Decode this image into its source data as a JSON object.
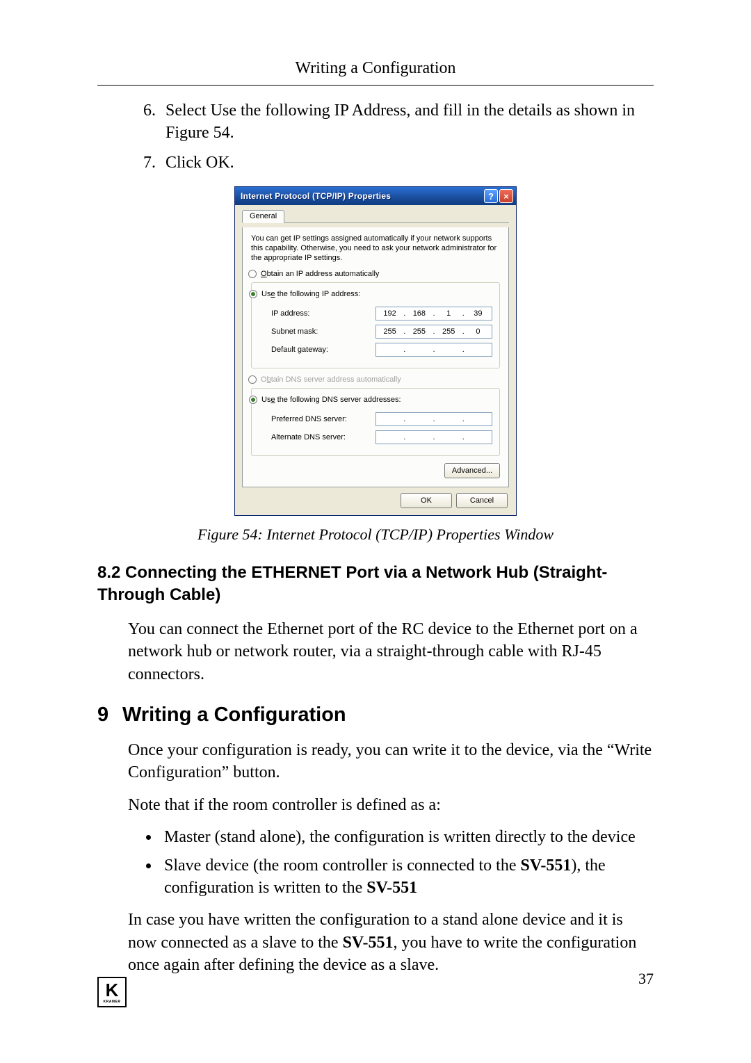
{
  "header": {
    "running": "Writing a Configuration"
  },
  "steps": [
    {
      "n": 6,
      "text": "Select Use the following IP Address, and fill in the details as shown in Figure 54."
    },
    {
      "n": 7,
      "text": "Click OK."
    }
  ],
  "figure": {
    "caption": "Figure 54: Internet Protocol (TCP/IP) Properties Window"
  },
  "dialog": {
    "title": "Internet Protocol (TCP/IP) Properties",
    "tab": "General",
    "description": "You can get IP settings assigned automatically if your network supports this capability. Otherwise, you need to ask your network administrator for the appropriate IP settings.",
    "ip_group": {
      "auto": {
        "label_pre": "O",
        "label_rest": "btain an IP address automatically",
        "selected": false
      },
      "manual": {
        "label_pre": "Us",
        "label_ul": "e",
        "label_rest": " the following IP address:",
        "selected": true
      },
      "fields": {
        "ip": {
          "label_pre": "",
          "label_ul": "I",
          "label_rest": "P address:",
          "o1": "192",
          "o2": "168",
          "o3": "1",
          "o4": "39"
        },
        "mask": {
          "label_pre": "S",
          "label_ul": "u",
          "label_rest": "bnet mask:",
          "o1": "255",
          "o2": "255",
          "o3": "255",
          "o4": "0"
        },
        "gateway": {
          "label_pre": "",
          "label_ul": "D",
          "label_rest": "efault gateway:",
          "o1": "",
          "o2": "",
          "o3": "",
          "o4": ""
        }
      }
    },
    "dns_group": {
      "auto": {
        "label_pre": "O",
        "label_ul": "b",
        "label_rest": "tain DNS server address automatically",
        "selected": false,
        "disabled": true
      },
      "manual": {
        "label_pre": "Us",
        "label_ul": "e",
        "label_rest": " the following DNS server addresses:",
        "selected": true
      },
      "fields": {
        "pref": {
          "label_pre": "",
          "label_ul": "P",
          "label_rest": "referred DNS server:",
          "o1": "",
          "o2": "",
          "o3": "",
          "o4": ""
        },
        "alt": {
          "label_pre": "",
          "label_ul": "A",
          "label_rest": "lternate DNS server:",
          "o1": "",
          "o2": "",
          "o3": "",
          "o4": ""
        }
      }
    },
    "buttons": {
      "advanced": "Advanced...",
      "ok": "OK",
      "cancel": "Cancel"
    }
  },
  "section_8_2": {
    "num": "8.2",
    "title": "Connecting the ETHERNET Port via a Network Hub (Straight-Through Cable)",
    "para": "You can connect the Ethernet port of the RC device to the Ethernet port on a network hub or network router, via a straight-through cable with RJ-45 connectors."
  },
  "section_9": {
    "num": "9",
    "title": "Writing a Configuration",
    "para1": "Once your configuration is ready, you can write it to the device, via the “Write Configuration” button.",
    "para2": "Note that if the room controller is defined as a:",
    "bullet1": "Master (stand alone), the configuration is written directly to the device",
    "bullet2_pre": "Slave device (the room controller is connected to the ",
    "bullet2_b1": "SV-551",
    "bullet2_mid": "), the configuration is written to the ",
    "bullet2_b2": "SV-551",
    "para3_pre": "In case you have written the configuration to a stand alone device and it is now connected as a slave to the ",
    "para3_b": "SV-551",
    "para3_post": ", you have to write the configuration once again after defining the device as a slave."
  },
  "page_number": "37",
  "logo": {
    "k": "K",
    "brand": "KRAMER"
  }
}
